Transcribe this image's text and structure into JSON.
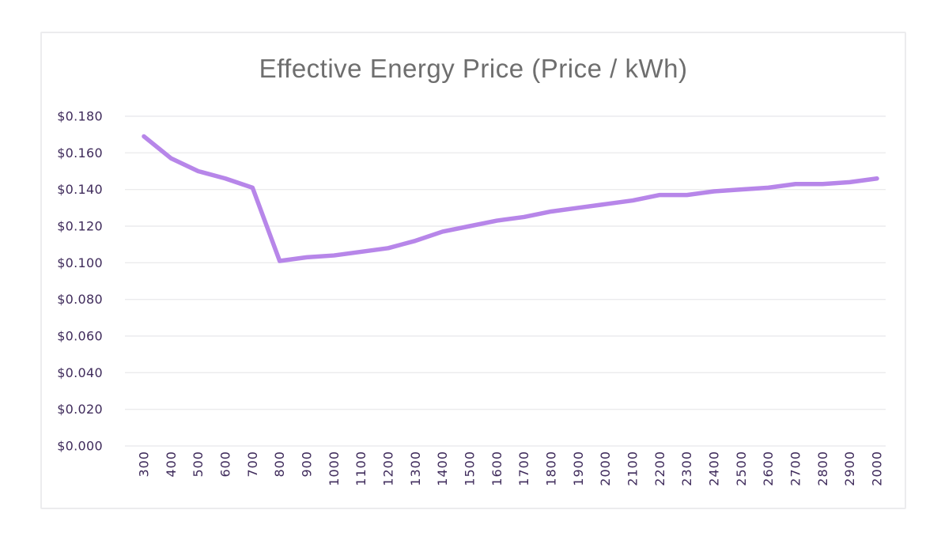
{
  "colors": {
    "line": "#b786e9",
    "axis_text": "#3f2b5b",
    "title_text": "#6e6e6e",
    "gridline": "#ebebed",
    "card_border": "#ececee",
    "background": "#ffffff"
  },
  "chart_data": {
    "type": "line",
    "title": "Effective Energy Price (Price / kWh)",
    "xlabel": "",
    "ylabel": "",
    "categories": [
      "300",
      "400",
      "500",
      "600",
      "700",
      "800",
      "900",
      "1000",
      "1100",
      "1200",
      "1300",
      "1400",
      "1500",
      "1600",
      "1700",
      "1800",
      "1900",
      "2000",
      "2100",
      "2200",
      "2300",
      "2400",
      "2500",
      "2600",
      "2700",
      "2800",
      "2900",
      "2000"
    ],
    "series": [
      {
        "name": "Effective Energy Price",
        "values": [
          0.169,
          0.157,
          0.15,
          0.146,
          0.141,
          0.101,
          0.103,
          0.104,
          0.106,
          0.108,
          0.112,
          0.117,
          0.12,
          0.123,
          0.125,
          0.128,
          0.13,
          0.132,
          0.134,
          0.137,
          0.137,
          0.139,
          0.14,
          0.141,
          0.143,
          0.143,
          0.144,
          0.146
        ]
      }
    ],
    "y_ticks": [
      {
        "label": "$0.180",
        "value": 0.18
      },
      {
        "label": "$0.160",
        "value": 0.16
      },
      {
        "label": "$0.140",
        "value": 0.14
      },
      {
        "label": "$0.120",
        "value": 0.12
      },
      {
        "label": "$0.100",
        "value": 0.1
      },
      {
        "label": "$0.080",
        "value": 0.08
      },
      {
        "label": "$0.060",
        "value": 0.06
      },
      {
        "label": "$0.040",
        "value": 0.04
      },
      {
        "label": "$0.020",
        "value": 0.02
      },
      {
        "label": "$0.000",
        "value": 0.0
      }
    ],
    "ylim": [
      0,
      0.18
    ],
    "grid": "horizontal-only",
    "legend": "none",
    "x_label_rotation": -90
  }
}
